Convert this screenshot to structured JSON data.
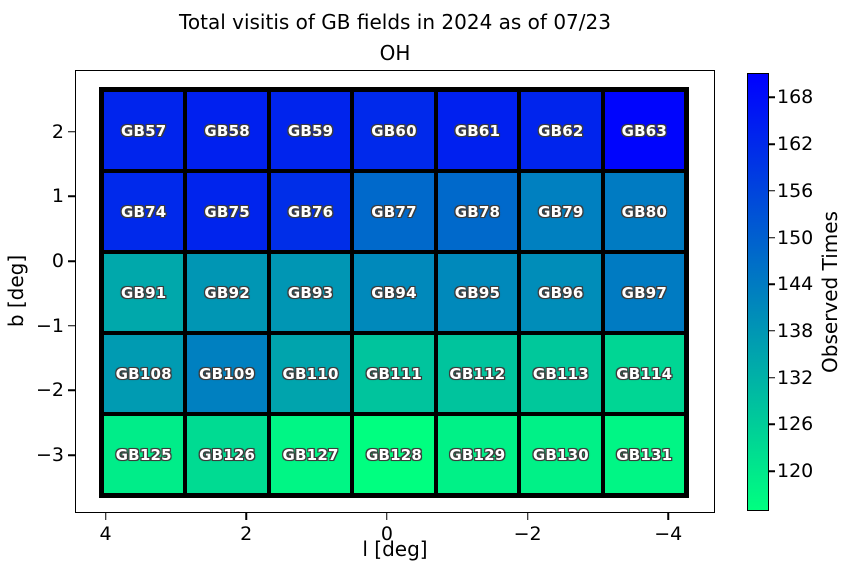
{
  "title": {
    "line1": "Total visitis of GB fields in 2024 as of 07/23",
    "line2": "OH"
  },
  "chart_data": {
    "type": "heatmap",
    "xlabel": "l [deg]",
    "ylabel": "b [deg]",
    "x_axis_reversed": true,
    "xlim": [
      4.42,
      -4.65
    ],
    "ylim": [
      2.94,
      -3.88
    ],
    "x_ticks": [
      {
        "label": "4",
        "value": 4
      },
      {
        "label": "2",
        "value": 2
      },
      {
        "label": "0",
        "value": 0
      },
      {
        "label": "−2",
        "value": -2
      },
      {
        "label": "−4",
        "value": -4
      }
    ],
    "y_ticks": [
      {
        "label": "2",
        "value": 2
      },
      {
        "label": "1",
        "value": 1
      },
      {
        "label": "0",
        "value": 0
      },
      {
        "label": "−1",
        "value": -1
      },
      {
        "label": "−2",
        "value": -2
      },
      {
        "label": "−3",
        "value": -3
      }
    ],
    "colorbar": {
      "label": "Observed Times",
      "vmin": 115,
      "vmax": 171,
      "colormap": "winter_r",
      "color_low": "#00ff80",
      "color_high": "#0000ff",
      "ticks": [
        {
          "label": "168",
          "value": 168
        },
        {
          "label": "162",
          "value": 162
        },
        {
          "label": "156",
          "value": 156
        },
        {
          "label": "150",
          "value": 150
        },
        {
          "label": "144",
          "value": 144
        },
        {
          "label": "138",
          "value": 138
        },
        {
          "label": "132",
          "value": 132
        },
        {
          "label": "126",
          "value": 126
        },
        {
          "label": "120",
          "value": 120
        }
      ]
    },
    "rows": [
      {
        "fields": [
          {
            "label": "GB57",
            "value": 163
          },
          {
            "label": "GB58",
            "value": 164
          },
          {
            "label": "GB59",
            "value": 163
          },
          {
            "label": "GB60",
            "value": 162
          },
          {
            "label": "GB61",
            "value": 164
          },
          {
            "label": "GB62",
            "value": 163
          },
          {
            "label": "GB63",
            "value": 170
          }
        ]
      },
      {
        "fields": [
          {
            "label": "GB74",
            "value": 162
          },
          {
            "label": "GB75",
            "value": 163
          },
          {
            "label": "GB76",
            "value": 161
          },
          {
            "label": "GB77",
            "value": 148
          },
          {
            "label": "GB78",
            "value": 148
          },
          {
            "label": "GB79",
            "value": 143
          },
          {
            "label": "GB80",
            "value": 144
          }
        ]
      },
      {
        "fields": [
          {
            "label": "GB91",
            "value": 134
          },
          {
            "label": "GB92",
            "value": 138
          },
          {
            "label": "GB93",
            "value": 138
          },
          {
            "label": "GB94",
            "value": 141
          },
          {
            "label": "GB95",
            "value": 141
          },
          {
            "label": "GB96",
            "value": 140
          },
          {
            "label": "GB97",
            "value": 144
          }
        ]
      },
      {
        "fields": [
          {
            "label": "GB108",
            "value": 137
          },
          {
            "label": "GB109",
            "value": 143
          },
          {
            "label": "GB110",
            "value": 135
          },
          {
            "label": "GB111",
            "value": 128
          },
          {
            "label": "GB112",
            "value": 128
          },
          {
            "label": "GB113",
            "value": 127
          },
          {
            "label": "GB114",
            "value": 124
          }
        ]
      },
      {
        "fields": [
          {
            "label": "GB125",
            "value": 119
          },
          {
            "label": "GB126",
            "value": 123
          },
          {
            "label": "GB127",
            "value": 117
          },
          {
            "label": "GB128",
            "value": 115
          },
          {
            "label": "GB129",
            "value": 118
          },
          {
            "label": "GB130",
            "value": 118
          },
          {
            "label": "GB131",
            "value": 117
          }
        ]
      }
    ]
  }
}
